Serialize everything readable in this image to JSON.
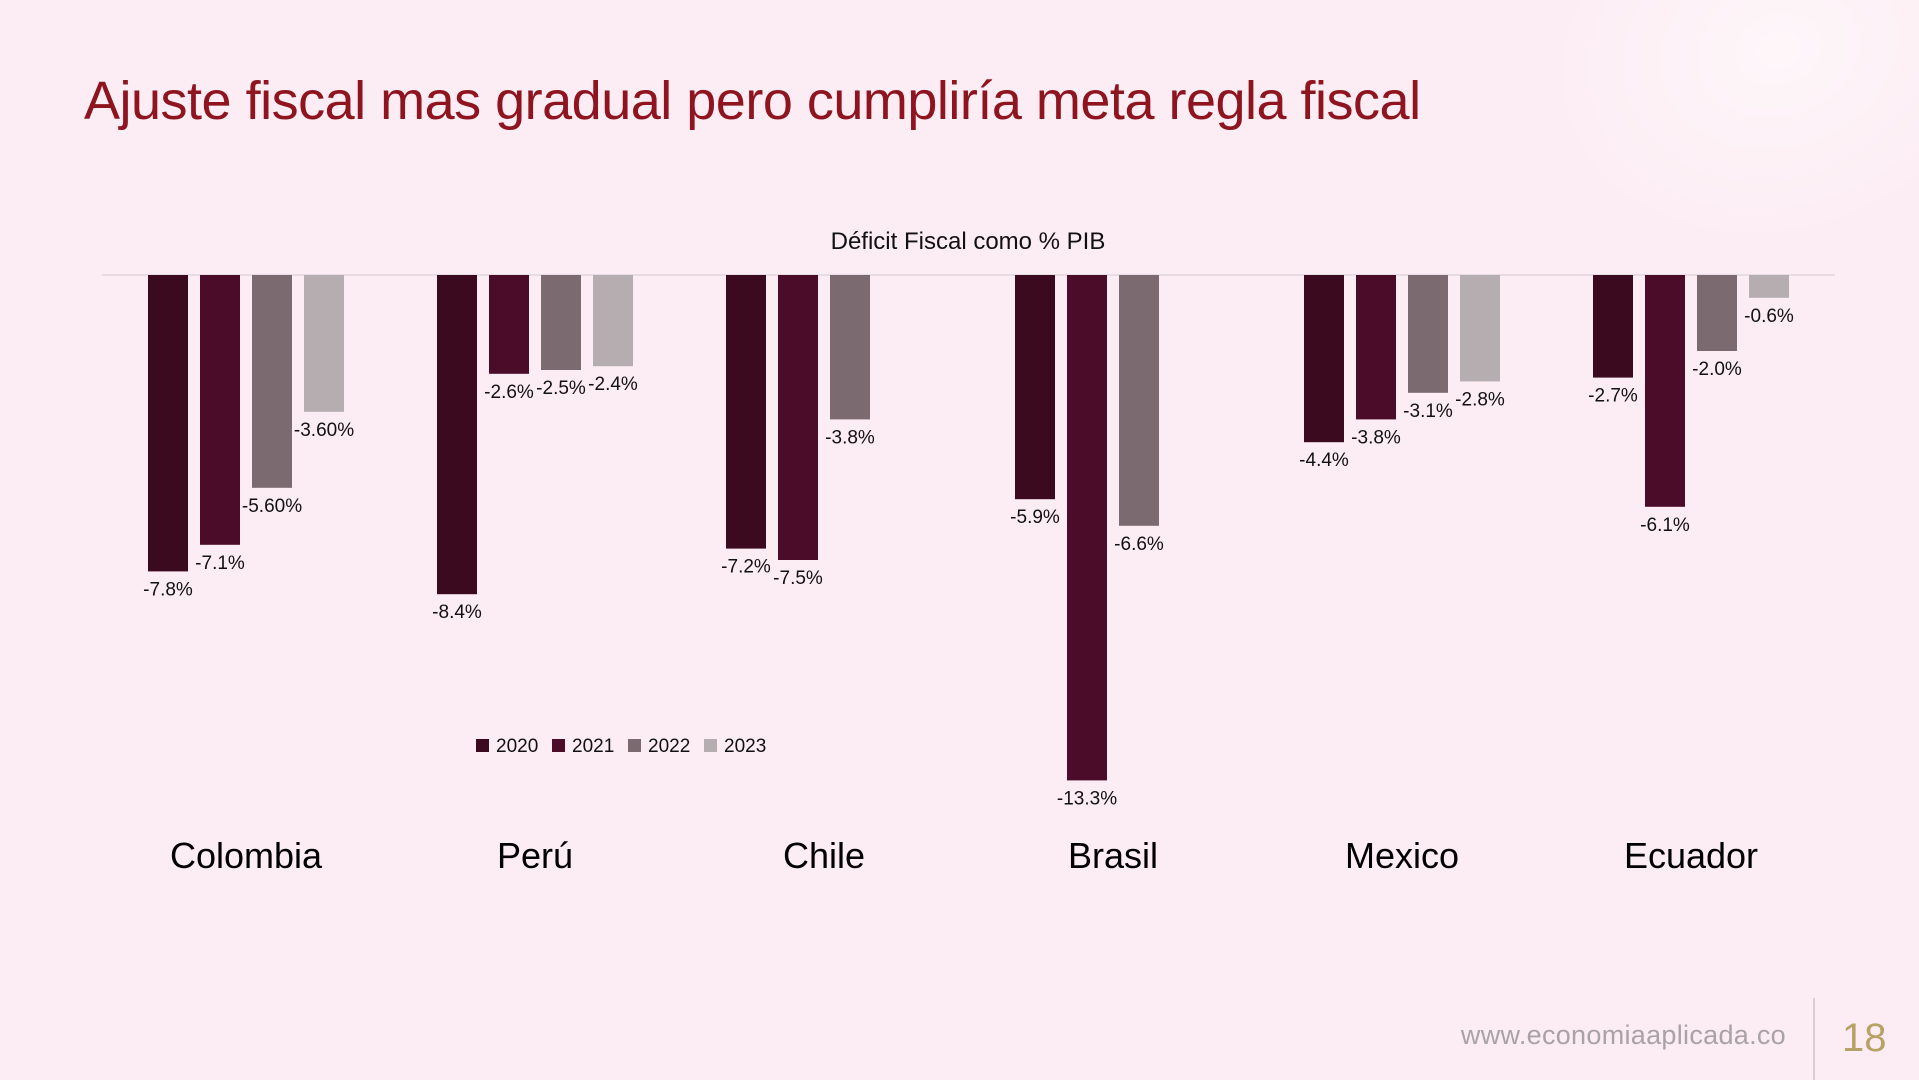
{
  "slide": {
    "title": "Ajuste fiscal mas gradual pero cumpliría meta regla fiscal",
    "footer_url": "www.economiaaplicada.co",
    "page_number": "18"
  },
  "chart_data": {
    "type": "bar",
    "title": "Déficit Fiscal como % PIB",
    "categories": [
      "Colombia",
      "Perú",
      "Chile",
      "Brasil",
      "Mexico",
      "Ecuador"
    ],
    "series": [
      {
        "name": "2020",
        "color": "#3b0a1f",
        "values": [
          -7.8,
          -8.4,
          -7.2,
          -5.9,
          -4.4,
          -2.7
        ],
        "labels": [
          "-7.8%",
          "-8.4%",
          "-7.2%",
          "-5.9%",
          "-4.4%",
          "-2.7%"
        ]
      },
      {
        "name": "2021",
        "color": "#4a0c28",
        "values": [
          -7.1,
          -2.6,
          -7.5,
          -13.3,
          -3.8,
          -6.1
        ],
        "labels": [
          "-7.1%",
          "-2.6%",
          "-7.5%",
          "-13.3%",
          "-3.8%",
          "-6.1%"
        ]
      },
      {
        "name": "2022",
        "color": "#7b6a6f",
        "values": [
          -5.6,
          -2.5,
          -3.8,
          -6.6,
          -3.1,
          -2.0
        ],
        "labels": [
          "-5.60%",
          "-2.5%",
          "-3.8%",
          "-6.6%",
          "-3.1%",
          "-2.0%"
        ]
      },
      {
        "name": "2023",
        "color": "#b5adb0",
        "values": [
          -3.6,
          -2.4,
          null,
          null,
          -2.8,
          -0.6
        ],
        "labels": [
          "-3.60%",
          "-2.4%",
          null,
          null,
          "-2.8%",
          "-0.6%"
        ]
      }
    ],
    "legend_position": "lower-left",
    "grid": false
  }
}
